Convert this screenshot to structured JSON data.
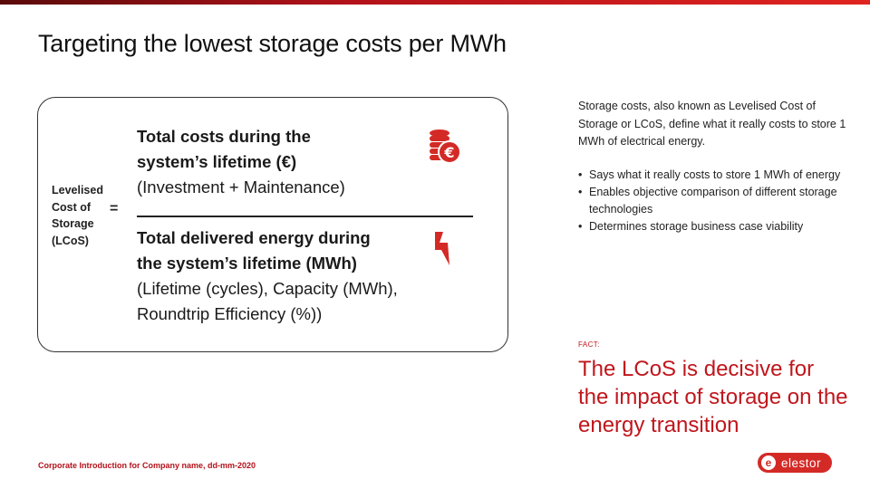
{
  "slide": {
    "title": "Targeting the lowest storage costs per MWh",
    "footer": "Corporate Introduction for Company name, dd-mm-2020"
  },
  "formula": {
    "label_lines": [
      "Levelised",
      "Cost of",
      "Storage",
      "(LCoS)"
    ],
    "equals": "=",
    "numerator": {
      "bold_lines": [
        "Total costs during the",
        "system’s lifetime (€)"
      ],
      "regular_lines": [
        "(Investment + Maintenance)"
      ]
    },
    "denominator": {
      "bold_lines": [
        "Total delivered energy during",
        "the system’s lifetime (MWh)"
      ],
      "regular_lines": [
        "(Lifetime (cycles), Capacity (MWh),",
        "Roundtrip Efficiency (%))"
      ]
    },
    "icons": {
      "numerator": "euro-coins-icon",
      "denominator": "lightning-bolt-icon",
      "accent_color": "#d42a26"
    }
  },
  "description": {
    "paragraph": "Storage costs, also known as Levelised Cost of Storage or LCoS, define what it really costs to store 1 MWh of electrical energy.",
    "bullets": [
      "Says what it really costs to store 1 MWh of energy",
      "Enables objective comparison of different storage technologies",
      "Determines storage business case viability"
    ]
  },
  "fact": {
    "label": "FACT:",
    "text": "The LCoS is decisive for the impact of storage on the energy transition",
    "color": "#c0161c"
  },
  "logo": {
    "mark": "e",
    "text": "elestor",
    "color": "#d42a26"
  }
}
